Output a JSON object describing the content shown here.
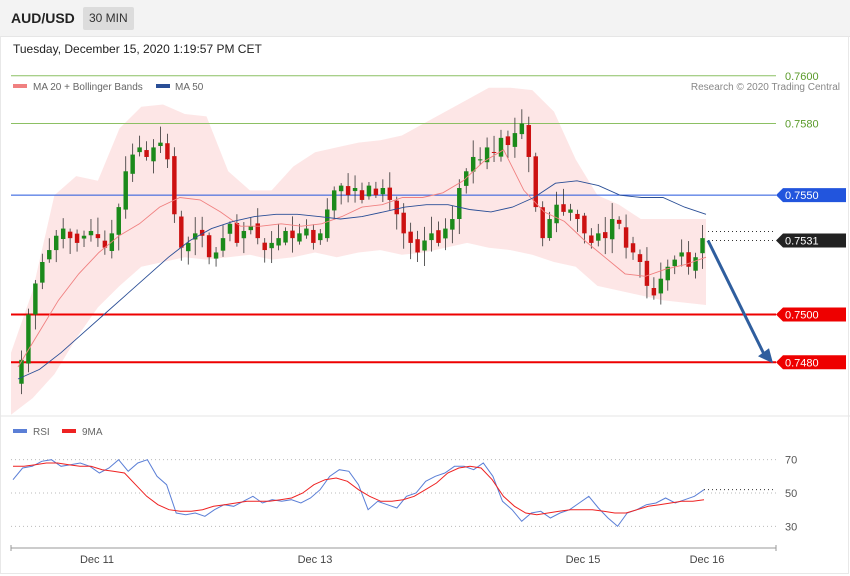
{
  "header": {
    "symbol": "AUD/USD",
    "timeframe": "30 MIN"
  },
  "timestamp": "Tuesday, December 15, 2020 1:19:57 PM CET",
  "legend": {
    "ma20_label": "MA 20 + Bollinger Bands",
    "ma50_label": "MA 50",
    "credit": "Research © 2020 Trading Central",
    "rsi_label": "RSI",
    "ma9_label": "9MA"
  },
  "colors": {
    "ma20": "#f08080",
    "ma50": "#2a4e96",
    "bands": "#fde3e3",
    "green_level": "#8cc063",
    "blue_level": "#2255dd",
    "red_level": "#ee0000",
    "bull_candle": "#1b8a1b",
    "bear_candle": "#cc1111",
    "arrow": "#2f5e9e",
    "rsi": "#5b7fd6",
    "rsi_ma": "#ee2222"
  },
  "chart_data": [
    {
      "type": "candlestick",
      "title": "AUD/USD",
      "timeframe": "30 MIN",
      "x_labels": [
        "Dec 11",
        "Dec 13",
        "Dec 15",
        "Dec 16"
      ],
      "ylim": [
        0.746,
        0.7615
      ],
      "levels": [
        {
          "value": 0.76,
          "label": "0.7600",
          "style": "green-line"
        },
        {
          "value": 0.758,
          "label": "0.7580",
          "style": "green-line"
        },
        {
          "value": 0.755,
          "label": "0.7550",
          "style": "resistance"
        },
        {
          "value": 0.7531,
          "label": "0.7531",
          "style": "current-price"
        },
        {
          "value": 0.75,
          "label": "0.7500",
          "style": "support"
        },
        {
          "value": 0.748,
          "label": "0.7480",
          "style": "support"
        }
      ],
      "forecast_arrow": {
        "from": 0.7531,
        "to": 0.748,
        "direction": "down"
      },
      "close_path": [
        0.7481,
        0.75,
        0.7513,
        0.7522,
        0.7527,
        0.7533,
        0.7536,
        0.7532,
        0.753,
        0.7533,
        0.7535,
        0.7532,
        0.7528,
        0.7534,
        0.7545,
        0.756,
        0.7567,
        0.757,
        0.7566,
        0.757,
        0.7572,
        0.7565,
        0.7542,
        0.7528,
        0.753,
        0.7534,
        0.7533,
        0.7524,
        0.7526,
        0.7532,
        0.7538,
        0.753,
        0.7535,
        0.7537,
        0.7532,
        0.7527,
        0.753,
        0.7532,
        0.7535,
        0.7532,
        0.7534,
        0.7536,
        0.753,
        0.7534,
        0.7544,
        0.7552,
        0.7554,
        0.755,
        0.7553,
        0.7548,
        0.7554,
        0.755,
        0.7553,
        0.7548,
        0.7542,
        0.7534,
        0.753,
        0.7526,
        0.7531,
        0.7534,
        0.753,
        0.7536,
        0.754,
        0.7553,
        0.756,
        0.7566,
        0.7565,
        0.757,
        0.7568,
        0.7574,
        0.7571,
        0.7576,
        0.758,
        0.7566,
        0.7545,
        0.7532,
        0.754,
        0.7546,
        0.7543,
        0.7544,
        0.754,
        0.7534,
        0.753,
        0.7534,
        0.7532,
        0.754,
        0.7538,
        0.7528,
        0.7526,
        0.7522,
        0.7512,
        0.7508,
        0.7515,
        0.752,
        0.7523,
        0.7526,
        0.752,
        0.7524,
        0.7532
      ],
      "ma20_path": [
        0.7478,
        0.7492,
        0.7506,
        0.7517,
        0.7526,
        0.7533,
        0.7538,
        0.7545,
        0.7549,
        0.7548,
        0.7543,
        0.7537,
        0.7537,
        0.7538,
        0.7537,
        0.7538,
        0.7541,
        0.7545,
        0.7546,
        0.7549,
        0.7549,
        0.7551,
        0.7556,
        0.7564,
        0.7569,
        0.7552,
        0.7543,
        0.7539,
        0.7531,
        0.7524,
        0.7517,
        0.7516,
        0.7519,
        0.7521,
        0.7524
      ],
      "ma50_path": [
        0.7473,
        0.7477,
        0.7484,
        0.7492,
        0.75,
        0.7508,
        0.7516,
        0.7524,
        0.7531,
        0.7536,
        0.7539,
        0.7541,
        0.7542,
        0.7542,
        0.7541,
        0.754,
        0.7541,
        0.7543,
        0.7545,
        0.7546,
        0.7546,
        0.7544,
        0.7543,
        0.7545,
        0.7549,
        0.7555,
        0.7556,
        0.7554,
        0.755,
        0.7549,
        0.7549,
        0.7545,
        0.7542
      ],
      "upper_band_path": [
        0.7484,
        0.751,
        0.755,
        0.7558,
        0.7556,
        0.7578,
        0.7587,
        0.7588,
        0.7584,
        0.7583,
        0.756,
        0.7552,
        0.7552,
        0.7562,
        0.7568,
        0.757,
        0.7572,
        0.7573,
        0.7575,
        0.758,
        0.7585,
        0.759,
        0.7595,
        0.7595,
        0.7594,
        0.7585,
        0.7565,
        0.755,
        0.7546,
        0.754,
        0.754,
        0.754,
        0.754
      ],
      "lower_band_path": [
        0.7458,
        0.7465,
        0.7475,
        0.749,
        0.7503,
        0.7512,
        0.752,
        0.7522,
        0.7524,
        0.7523,
        0.7524,
        0.7525,
        0.7523,
        0.7524,
        0.7526,
        0.7524,
        0.7526,
        0.7527,
        0.7525,
        0.7526,
        0.7528,
        0.753,
        0.7528,
        0.7527,
        0.7525,
        0.7522,
        0.752,
        0.7512,
        0.751,
        0.7508,
        0.7506,
        0.7505,
        0.7504
      ]
    },
    {
      "type": "line",
      "title": "RSI",
      "ylim": [
        20,
        80
      ],
      "y_ticks": [
        "70",
        "50",
        "30"
      ],
      "series": [
        {
          "name": "RSI",
          "values": [
            58,
            65,
            66,
            69,
            70,
            66,
            67,
            68,
            66,
            62,
            65,
            70,
            63,
            68,
            70,
            60,
            55,
            38,
            37,
            38,
            36,
            40,
            43,
            42,
            45,
            48,
            44,
            46,
            45,
            46,
            44,
            47,
            52,
            60,
            64,
            63,
            55,
            40,
            45,
            43,
            41,
            48,
            50,
            57,
            60,
            62,
            66,
            66,
            64,
            68,
            60,
            45,
            40,
            33,
            38,
            39,
            35,
            38,
            40,
            44,
            48,
            41,
            35,
            30,
            38,
            40,
            43,
            44,
            47,
            44,
            46,
            48,
            52
          ],
          "ma_name": "9MA",
          "ma_values": [
            66,
            66,
            67,
            68,
            68,
            67,
            66,
            66,
            64,
            63,
            62,
            55,
            48,
            43,
            40,
            39,
            39,
            40,
            42,
            43,
            44,
            45,
            45,
            45,
            46,
            47,
            50,
            55,
            58,
            59,
            57,
            52,
            48,
            45,
            45,
            46,
            48,
            52,
            56,
            62,
            65,
            66,
            65,
            58,
            48,
            42,
            38,
            37,
            38,
            39,
            40,
            40,
            40,
            39,
            38,
            38,
            40,
            42,
            43,
            44,
            45,
            45,
            46
          ]
        }
      ]
    }
  ]
}
